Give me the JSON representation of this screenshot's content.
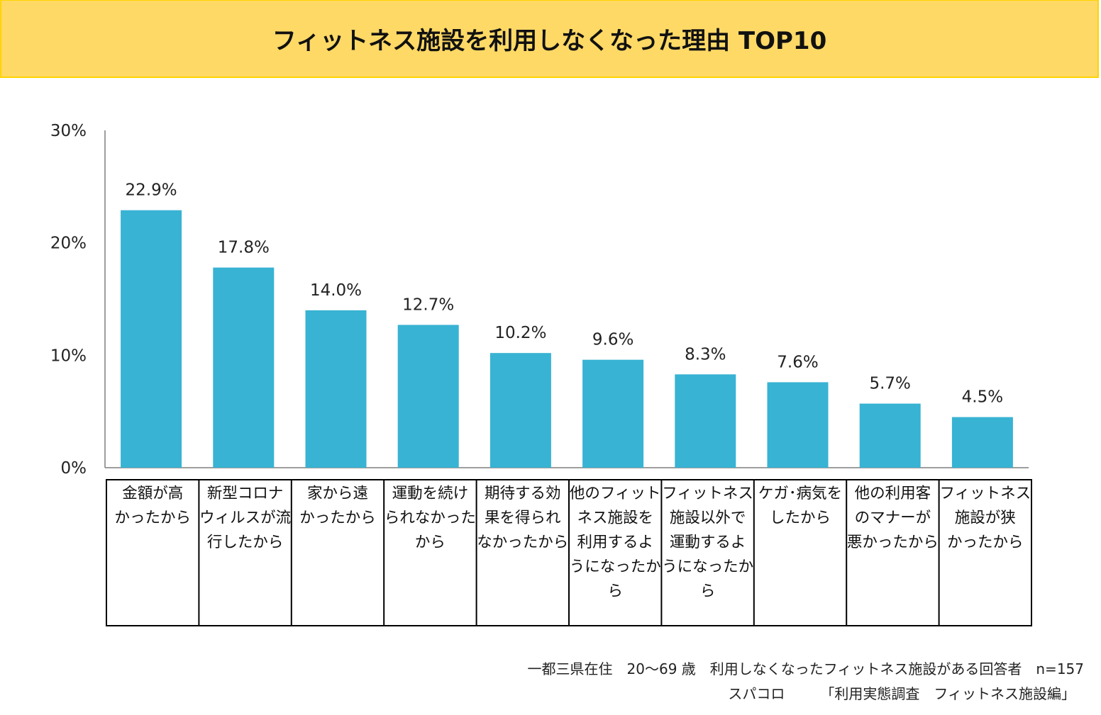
{
  "colors": {
    "banner_bg": "#ffd966",
    "banner_border": "#ffd400",
    "bar": "#38b3d3",
    "axis": "#7f7f7f"
  },
  "chart_data": {
    "type": "bar",
    "title": "フィットネス施設を利用しなくなった理由 TOP10",
    "ylim": [
      0,
      30
    ],
    "yticks": [
      0,
      10,
      20,
      30
    ],
    "ytick_labels": [
      "0%",
      "10%",
      "20%",
      "30%"
    ],
    "categories": [
      [
        "金額が高",
        "かったから"
      ],
      [
        "新型コロナ",
        "ウィルスが流",
        "行したから"
      ],
      [
        "家から遠",
        "かったから"
      ],
      [
        "運動を続け",
        "られなかった",
        "から"
      ],
      [
        "期待する効",
        "果を得られ",
        "なかったから"
      ],
      [
        "他のフィット",
        "ネス施設を",
        "利用するよ",
        "うになったか",
        "ら"
      ],
      [
        "フィットネス",
        "施設以外で",
        "運動するよ",
        "うになったか",
        "ら"
      ],
      [
        "ケガ･病気を",
        "したから"
      ],
      [
        "他の利用客",
        "のマナーが",
        "悪かったから"
      ],
      [
        "フィットネス",
        "施設が狭",
        "かったから"
      ]
    ],
    "values": [
      22.9,
      17.8,
      14.0,
      12.7,
      10.2,
      9.6,
      8.3,
      7.6,
      5.7,
      4.5
    ],
    "value_labels": [
      "22.9%",
      "17.8%",
      "14.0%",
      "12.7%",
      "10.2%",
      "9.6%",
      "8.3%",
      "7.6%",
      "5.7%",
      "4.5%"
    ],
    "xlabel": "",
    "ylabel": ""
  },
  "footer": {
    "line1": "一都三県在住　20～69 歳　利用しなくなったフィットネス施設がある回答者　n=157",
    "line2": "スパコロ　　　「利用実態調査　フィットネス施設編」"
  }
}
